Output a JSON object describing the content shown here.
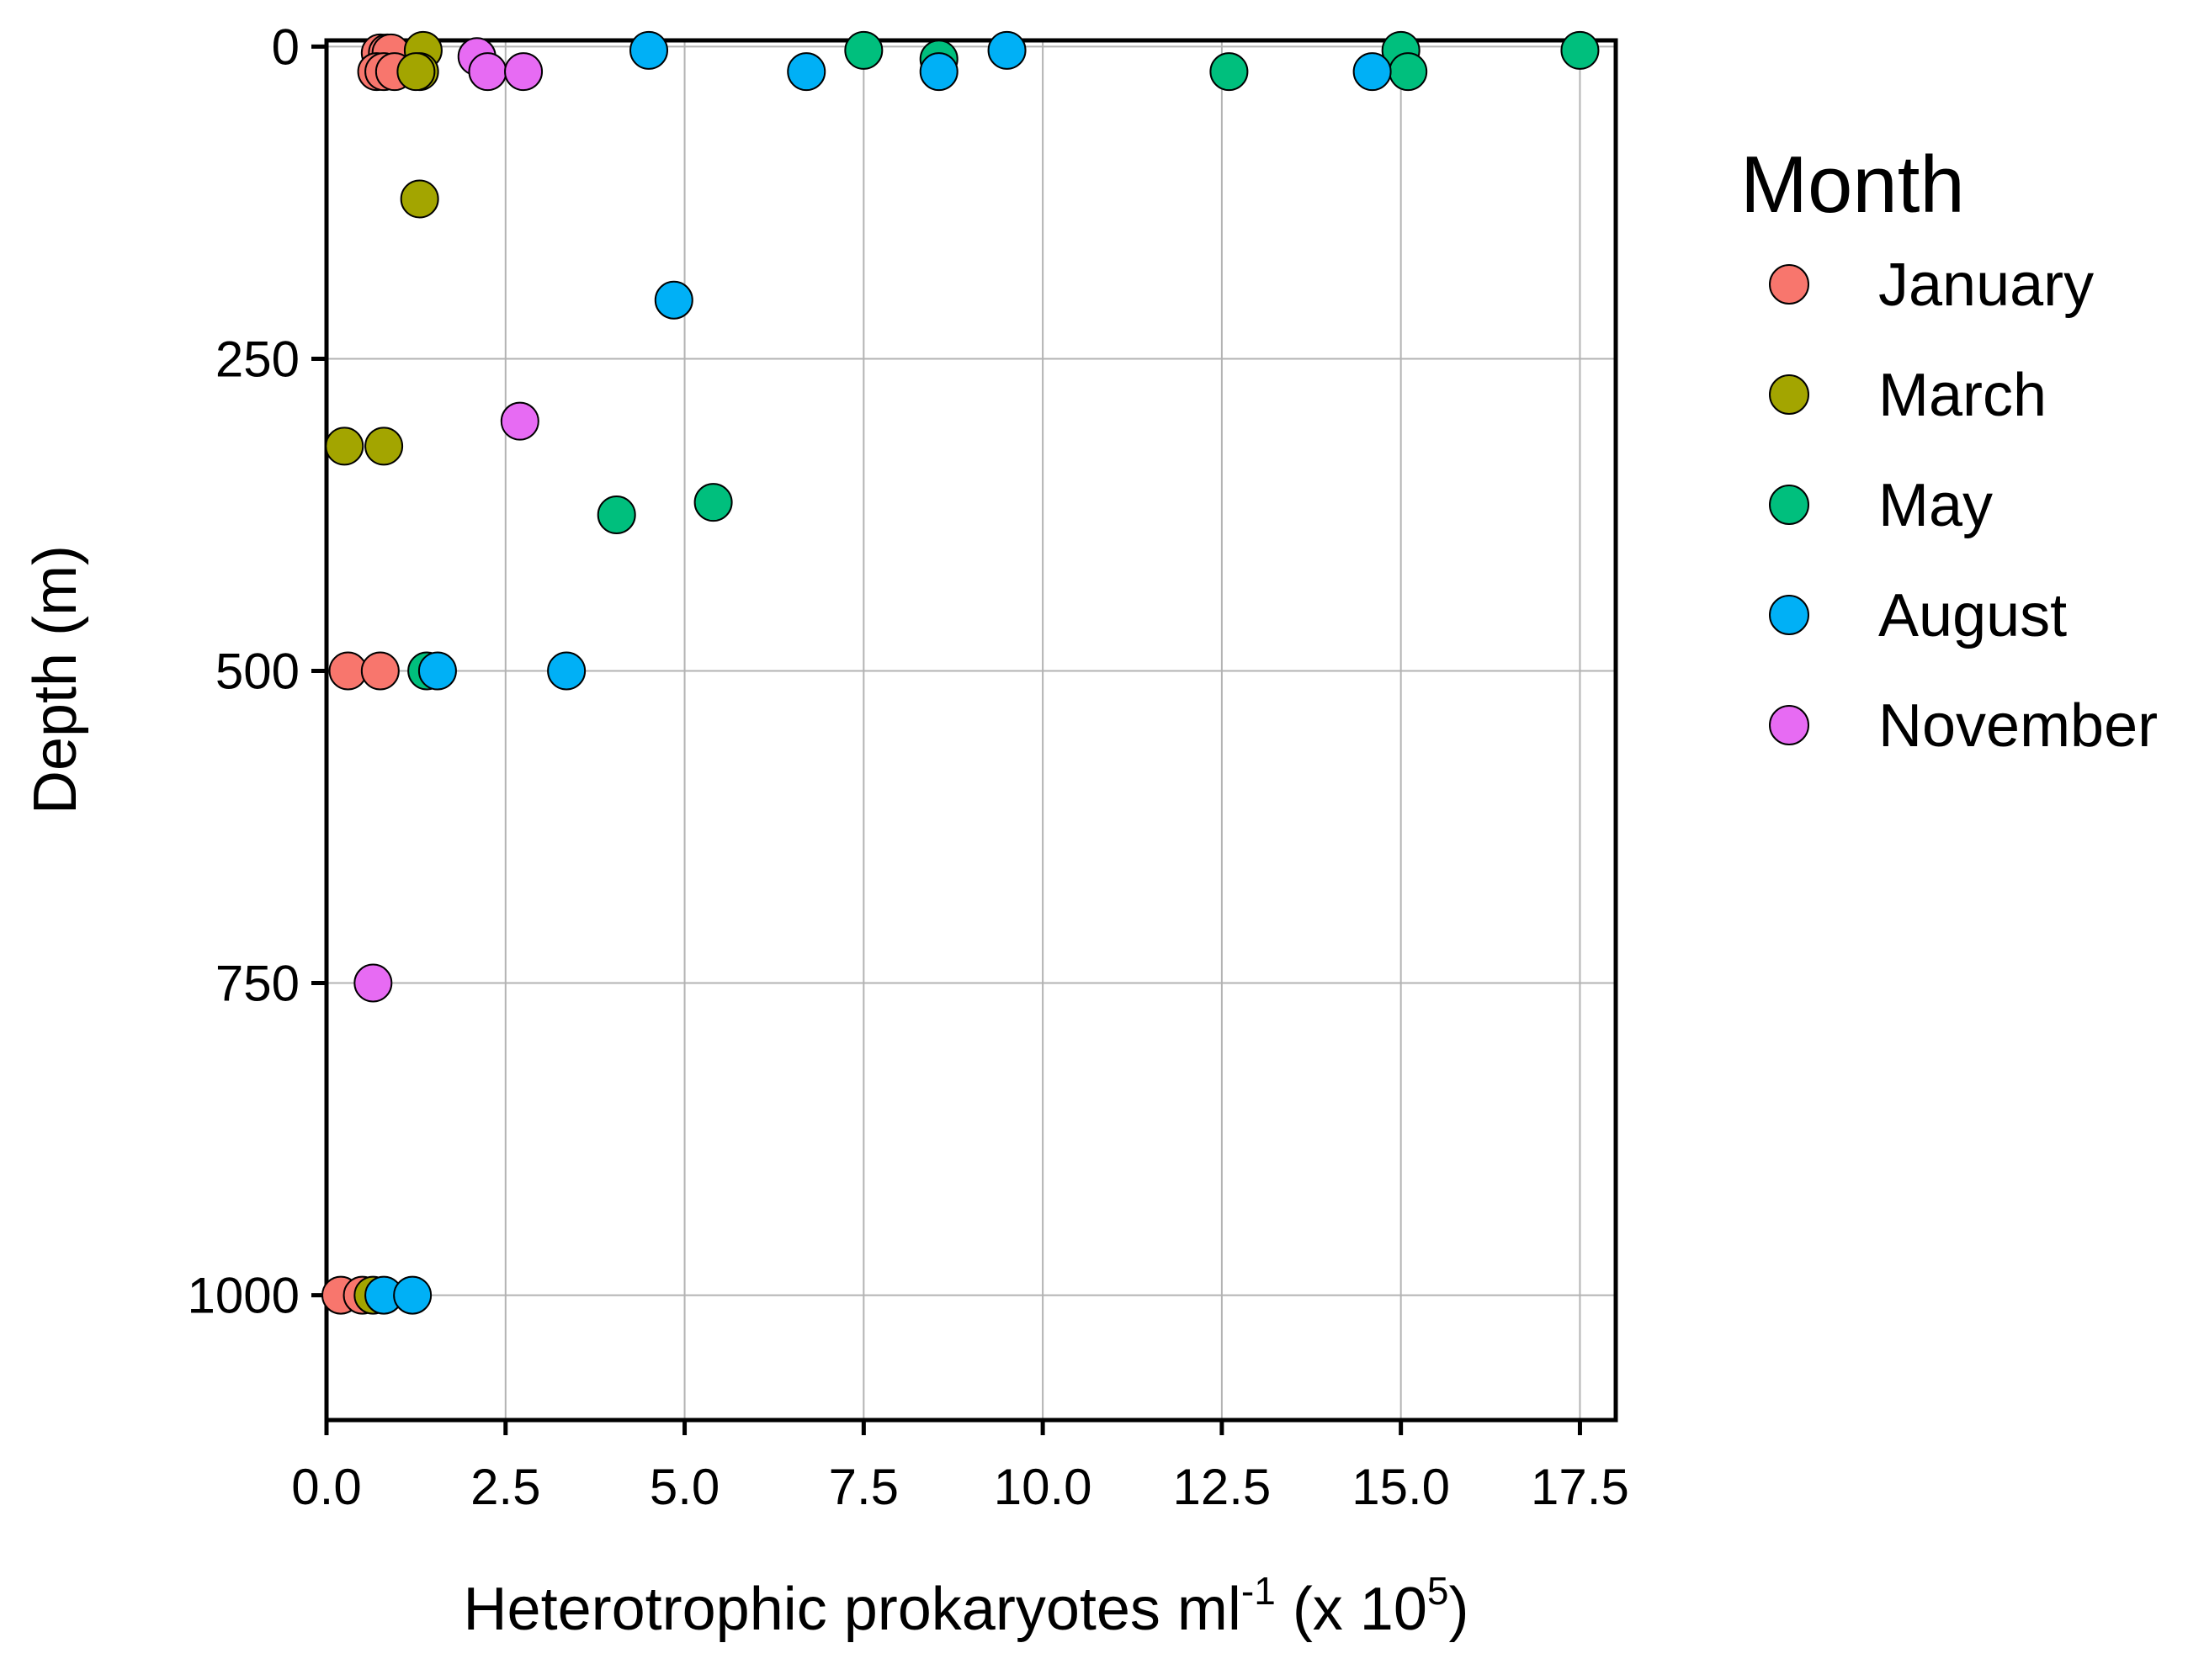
{
  "chart_data": {
    "type": "scatter",
    "title": "",
    "xlabel": {
      "main": "Heterotrophic prokaryotes ml",
      "sup1": "-1",
      "mid": " (x 10",
      "sup2": "5",
      "end": ")"
    },
    "ylabel": "Depth (m)",
    "xlim": [
      0,
      18
    ],
    "ylim": [
      -5,
      1100
    ],
    "y_inverted": true,
    "grid": true,
    "x_ticks": [
      0,
      2.5,
      5,
      7.5,
      10,
      12.5,
      15,
      17.5
    ],
    "x_tick_labels": [
      "0.0",
      "2.5",
      "5.0",
      "7.5",
      "10.0",
      "12.5",
      "15.0",
      "17.5"
    ],
    "y_ticks": [
      0,
      250,
      500,
      750,
      1000
    ],
    "y_tick_labels": [
      "0",
      "250",
      "500",
      "750",
      "1000"
    ],
    "legend": {
      "title": "Month",
      "position": "right"
    },
    "series": [
      {
        "name": "January",
        "color": "#F8766D",
        "points": [
          {
            "x": 0.75,
            "y": 5
          },
          {
            "x": 0.85,
            "y": 5
          },
          {
            "x": 0.9,
            "y": 5
          },
          {
            "x": 0.7,
            "y": 20
          },
          {
            "x": 0.8,
            "y": 20
          },
          {
            "x": 0.95,
            "y": 20
          },
          {
            "x": 0.3,
            "y": 500
          },
          {
            "x": 0.75,
            "y": 500
          },
          {
            "x": 0.2,
            "y": 1000
          },
          {
            "x": 0.5,
            "y": 1000
          }
        ]
      },
      {
        "name": "March",
        "color": "#A3A500",
        "points": [
          {
            "x": 1.35,
            "y": 3
          },
          {
            "x": 1.3,
            "y": 20
          },
          {
            "x": 1.25,
            "y": 20
          },
          {
            "x": 1.3,
            "y": 122
          },
          {
            "x": 0.25,
            "y": 320
          },
          {
            "x": 0.8,
            "y": 320
          },
          {
            "x": 0.65,
            "y": 1000
          }
        ]
      },
      {
        "name": "May",
        "color": "#00BF7D",
        "points": [
          {
            "x": 7.5,
            "y": 3
          },
          {
            "x": 8.55,
            "y": 10
          },
          {
            "x": 15.0,
            "y": 3
          },
          {
            "x": 17.5,
            "y": 3
          },
          {
            "x": 12.6,
            "y": 20
          },
          {
            "x": 15.1,
            "y": 20
          },
          {
            "x": 5.4,
            "y": 365
          },
          {
            "x": 4.05,
            "y": 375
          },
          {
            "x": 1.4,
            "y": 500
          }
        ]
      },
      {
        "name": "August",
        "color": "#00B0F6",
        "points": [
          {
            "x": 4.5,
            "y": 3
          },
          {
            "x": 9.5,
            "y": 3
          },
          {
            "x": 6.7,
            "y": 20
          },
          {
            "x": 8.55,
            "y": 20
          },
          {
            "x": 14.6,
            "y": 20
          },
          {
            "x": 4.85,
            "y": 203
          },
          {
            "x": 1.55,
            "y": 500
          },
          {
            "x": 3.35,
            "y": 500
          },
          {
            "x": 0.8,
            "y": 1000
          },
          {
            "x": 1.2,
            "y": 1000
          }
        ]
      },
      {
        "name": "November",
        "color": "#E76BF3",
        "points": [
          {
            "x": 2.1,
            "y": 8
          },
          {
            "x": 2.25,
            "y": 20
          },
          {
            "x": 2.75,
            "y": 20
          },
          {
            "x": 2.7,
            "y": 300
          },
          {
            "x": 0.65,
            "y": 750
          }
        ]
      }
    ]
  }
}
